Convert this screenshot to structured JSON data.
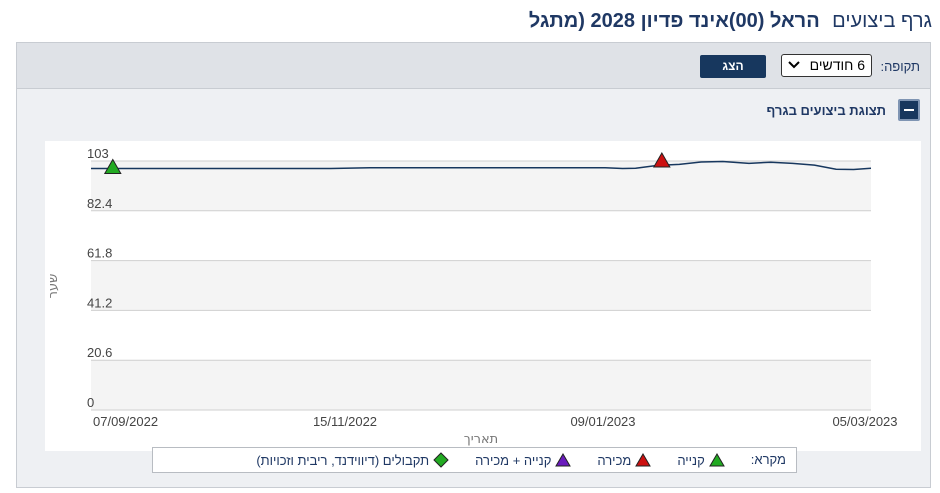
{
  "header": {
    "prefix": "גרף ביצועים",
    "name": "הראל (00)אינד פדיון 2028 (מתגל"
  },
  "toolbar": {
    "period_label": "תקופה:",
    "period_value": "6 חודשים",
    "show_button": "הצג"
  },
  "section": {
    "title": "תצוגת ביצועים בגרף"
  },
  "legend": {
    "title": "מקרא:",
    "items": [
      {
        "label": "קנייה",
        "icon": "triangle-up-icon",
        "color": "#22aa22"
      },
      {
        "label": "מכירה",
        "icon": "triangle-up-icon",
        "color": "#cc1111"
      },
      {
        "label": "קנייה + מכירה",
        "icon": "triangle-up-icon",
        "color": "#6a1bbd"
      },
      {
        "label": "תקבולים (דיווידנד, ריבית וזכויות)",
        "icon": "diamond-icon",
        "color": "#22aa22"
      }
    ]
  },
  "chart_data": {
    "type": "line",
    "ylabel": "שער",
    "xlabel": "תאריך",
    "ylim": [
      0,
      103
    ],
    "yticks": [
      0,
      20.6,
      41.2,
      61.8,
      82.4,
      103
    ],
    "xticks": [
      "07/09/2022",
      "15/11/2022",
      "09/01/2023",
      "05/03/2023"
    ],
    "xrange": [
      "2022-09-07",
      "2023-03-05"
    ],
    "grid": true,
    "line_color": "#17375e",
    "series": [
      {
        "x": [
          "2022-09-07",
          "2022-09-20",
          "2022-10-05",
          "2022-10-20",
          "2022-11-01",
          "2022-11-10",
          "2022-11-20",
          "2022-12-05",
          "2022-12-20",
          "2023-01-03",
          "2023-01-07",
          "2023-01-10",
          "2023-01-15",
          "2023-01-20",
          "2023-01-25",
          "2023-01-30",
          "2023-02-05",
          "2023-02-10",
          "2023-02-15",
          "2023-02-20",
          "2023-02-25",
          "2023-03-01",
          "2023-03-05"
        ],
        "y": [
          99.9,
          99.9,
          99.9,
          99.9,
          99.9,
          100.2,
          100.2,
          100.2,
          100.2,
          100.2,
          99.9,
          100.0,
          101.2,
          101.6,
          102.6,
          102.8,
          102.0,
          102.5,
          102.0,
          101.3,
          99.6,
          99.5,
          100.0
        ]
      }
    ],
    "markers": [
      {
        "type": "buy",
        "x": "2022-09-12",
        "y": 99.9,
        "color": "#22aa22"
      },
      {
        "type": "sell",
        "x": "2023-01-16",
        "y": 102.6,
        "color": "#cc1111"
      }
    ]
  }
}
